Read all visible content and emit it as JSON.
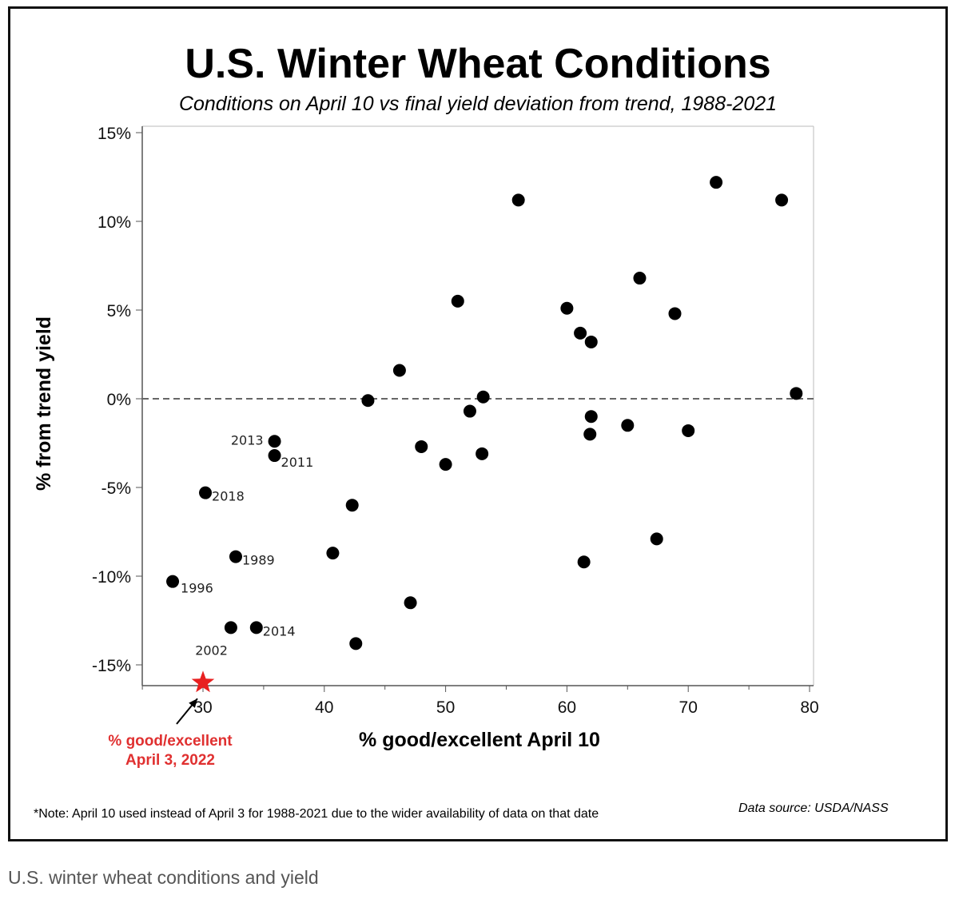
{
  "chart_data": {
    "type": "scatter",
    "title": "U.S. Winter Wheat Conditions",
    "subtitle": "Conditions on April 10 vs final yield deviation from trend, 1988-2021",
    "xlabel": "% good/excellent April 10",
    "ylabel": "% from trend yield",
    "xlim": [
      25,
      80
    ],
    "ylim": [
      -16,
      15
    ],
    "x_ticks": [
      30,
      40,
      50,
      60,
      70,
      80
    ],
    "x_tick_labels": [
      "30",
      "40",
      "50",
      "60",
      "70",
      "80"
    ],
    "y_ticks": [
      15,
      10,
      5,
      0,
      -5,
      -10,
      -15
    ],
    "y_tick_labels": [
      "15%",
      "10%",
      "5%",
      "0%",
      "-5%",
      "-10%",
      "-15%"
    ],
    "reference_line": {
      "y": 0,
      "style": "dashed"
    },
    "grid": false,
    "points": [
      {
        "x": 27.5,
        "y": -10.3,
        "label": "1996"
      },
      {
        "x": 30.2,
        "y": -5.3,
        "label": "2018"
      },
      {
        "x": 32.3,
        "y": -12.9,
        "label": "2002"
      },
      {
        "x": 32.7,
        "y": -8.9,
        "label": "1989"
      },
      {
        "x": 34.4,
        "y": -12.9,
        "label": "2014"
      },
      {
        "x": 35.9,
        "y": -2.4,
        "label": "2013"
      },
      {
        "x": 35.9,
        "y": -3.2,
        "label": "2011"
      },
      {
        "x": 40.7,
        "y": -8.7,
        "label": ""
      },
      {
        "x": 42.3,
        "y": -6.0,
        "label": ""
      },
      {
        "x": 42.6,
        "y": -13.8,
        "label": ""
      },
      {
        "x": 43.6,
        "y": -0.1,
        "label": ""
      },
      {
        "x": 46.2,
        "y": 1.6,
        "label": ""
      },
      {
        "x": 47.1,
        "y": -11.5,
        "label": ""
      },
      {
        "x": 48.0,
        "y": -2.7,
        "label": ""
      },
      {
        "x": 50.0,
        "y": -3.7,
        "label": ""
      },
      {
        "x": 51.0,
        "y": 5.5,
        "label": ""
      },
      {
        "x": 52.0,
        "y": -0.7,
        "label": ""
      },
      {
        "x": 53.0,
        "y": -3.1,
        "label": ""
      },
      {
        "x": 53.1,
        "y": 0.1,
        "label": ""
      },
      {
        "x": 56.0,
        "y": 11.2,
        "label": ""
      },
      {
        "x": 60.0,
        "y": 5.1,
        "label": ""
      },
      {
        "x": 61.1,
        "y": 3.7,
        "label": ""
      },
      {
        "x": 61.4,
        "y": -9.2,
        "label": ""
      },
      {
        "x": 61.9,
        "y": -2.0,
        "label": ""
      },
      {
        "x": 62.0,
        "y": -1.0,
        "label": ""
      },
      {
        "x": 62.0,
        "y": 3.2,
        "label": ""
      },
      {
        "x": 65.0,
        "y": -1.5,
        "label": ""
      },
      {
        "x": 66.0,
        "y": 6.8,
        "label": ""
      },
      {
        "x": 67.4,
        "y": -7.9,
        "label": ""
      },
      {
        "x": 68.9,
        "y": 4.8,
        "label": ""
      },
      {
        "x": 70.0,
        "y": -1.8,
        "label": ""
      },
      {
        "x": 72.3,
        "y": 12.2,
        "label": ""
      },
      {
        "x": 77.7,
        "y": 11.2,
        "label": ""
      },
      {
        "x": 78.9,
        "y": 0.3,
        "label": ""
      }
    ],
    "highlight": {
      "x": 30,
      "y": -16,
      "marker": "star",
      "color": "#e82020"
    }
  },
  "callout": {
    "line1": "% good/excellent",
    "line2": "April 3, 2022"
  },
  "note": "*Note: April 10 used instead of April 3 for 1988-2021 due to the wider availability of data on that date",
  "source": "Data source: USDA/NASS",
  "caption": "U.S. winter wheat conditions and yield",
  "colors": {
    "points": "#000000",
    "highlight": "#e82020",
    "callout_text": "#e03030",
    "dashed_line": "#666666",
    "caption": "#555555"
  }
}
